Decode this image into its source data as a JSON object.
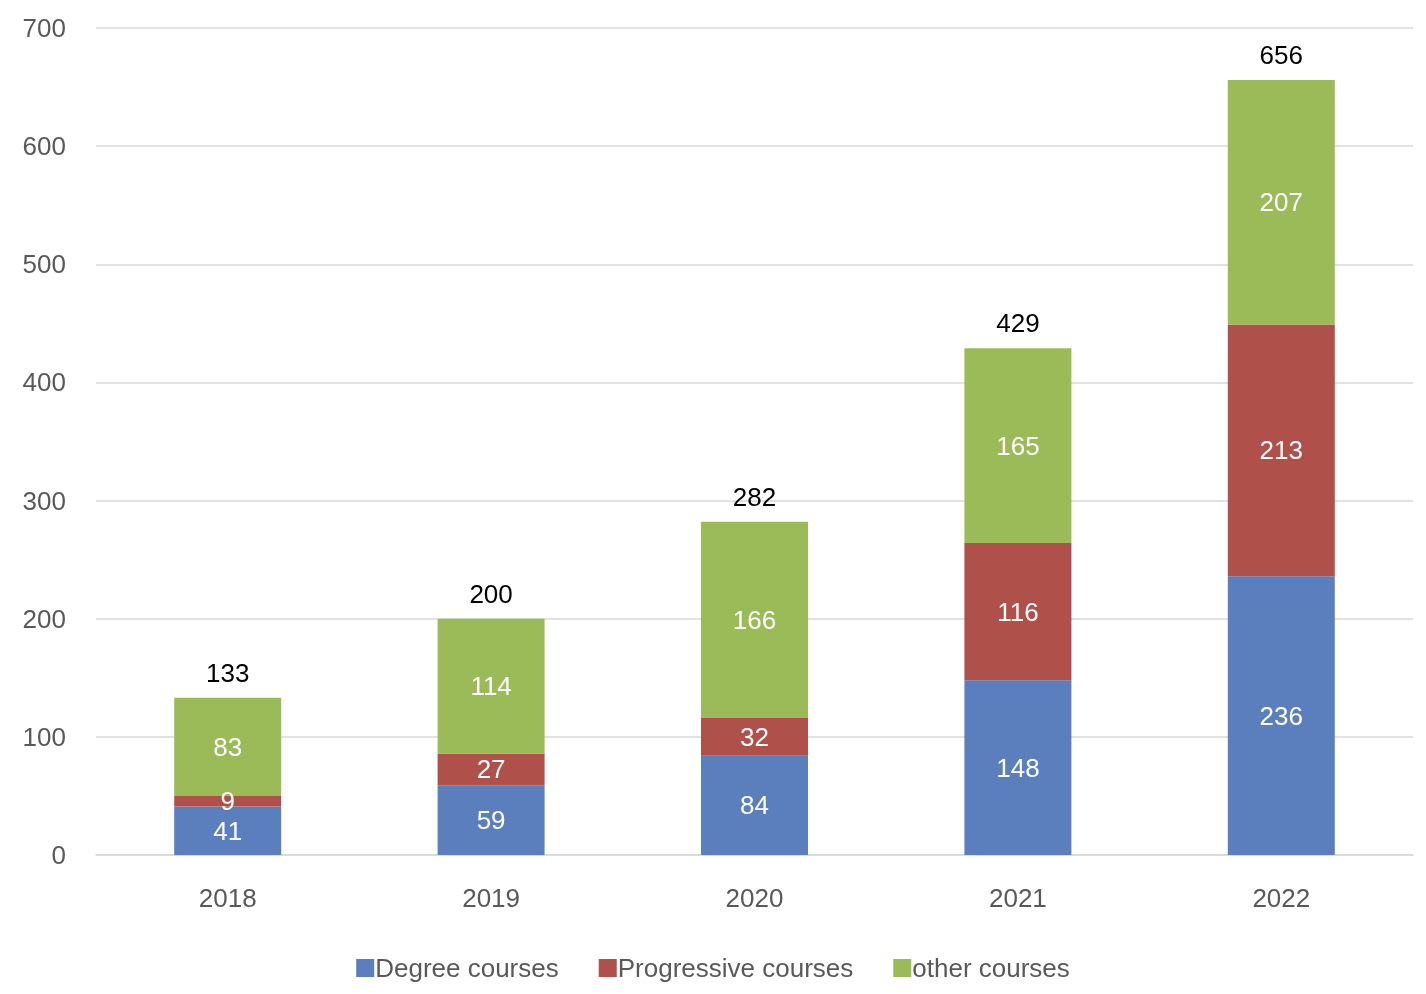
{
  "chart_data": {
    "type": "bar",
    "stacked": true,
    "categories": [
      "2018",
      "2019",
      "2020",
      "2021",
      "2022"
    ],
    "series": [
      {
        "name": "Degree courses",
        "color": "#5b7fbd",
        "values": [
          41,
          59,
          84,
          148,
          236
        ]
      },
      {
        "name": "Progressive courses",
        "color": "#b0504b",
        "values": [
          9,
          27,
          32,
          116,
          213
        ]
      },
      {
        "name": "other courses",
        "color": "#9bbb59",
        "values": [
          83,
          114,
          166,
          165,
          207
        ]
      }
    ],
    "totals": [
      "133",
      "200",
      "282",
      "429",
      "656"
    ],
    "data_labels": true,
    "ylim": [
      0,
      700
    ],
    "yticks": [
      0,
      100,
      200,
      300,
      400,
      500,
      600,
      700
    ],
    "grid": "y",
    "legend": "bottom"
  }
}
